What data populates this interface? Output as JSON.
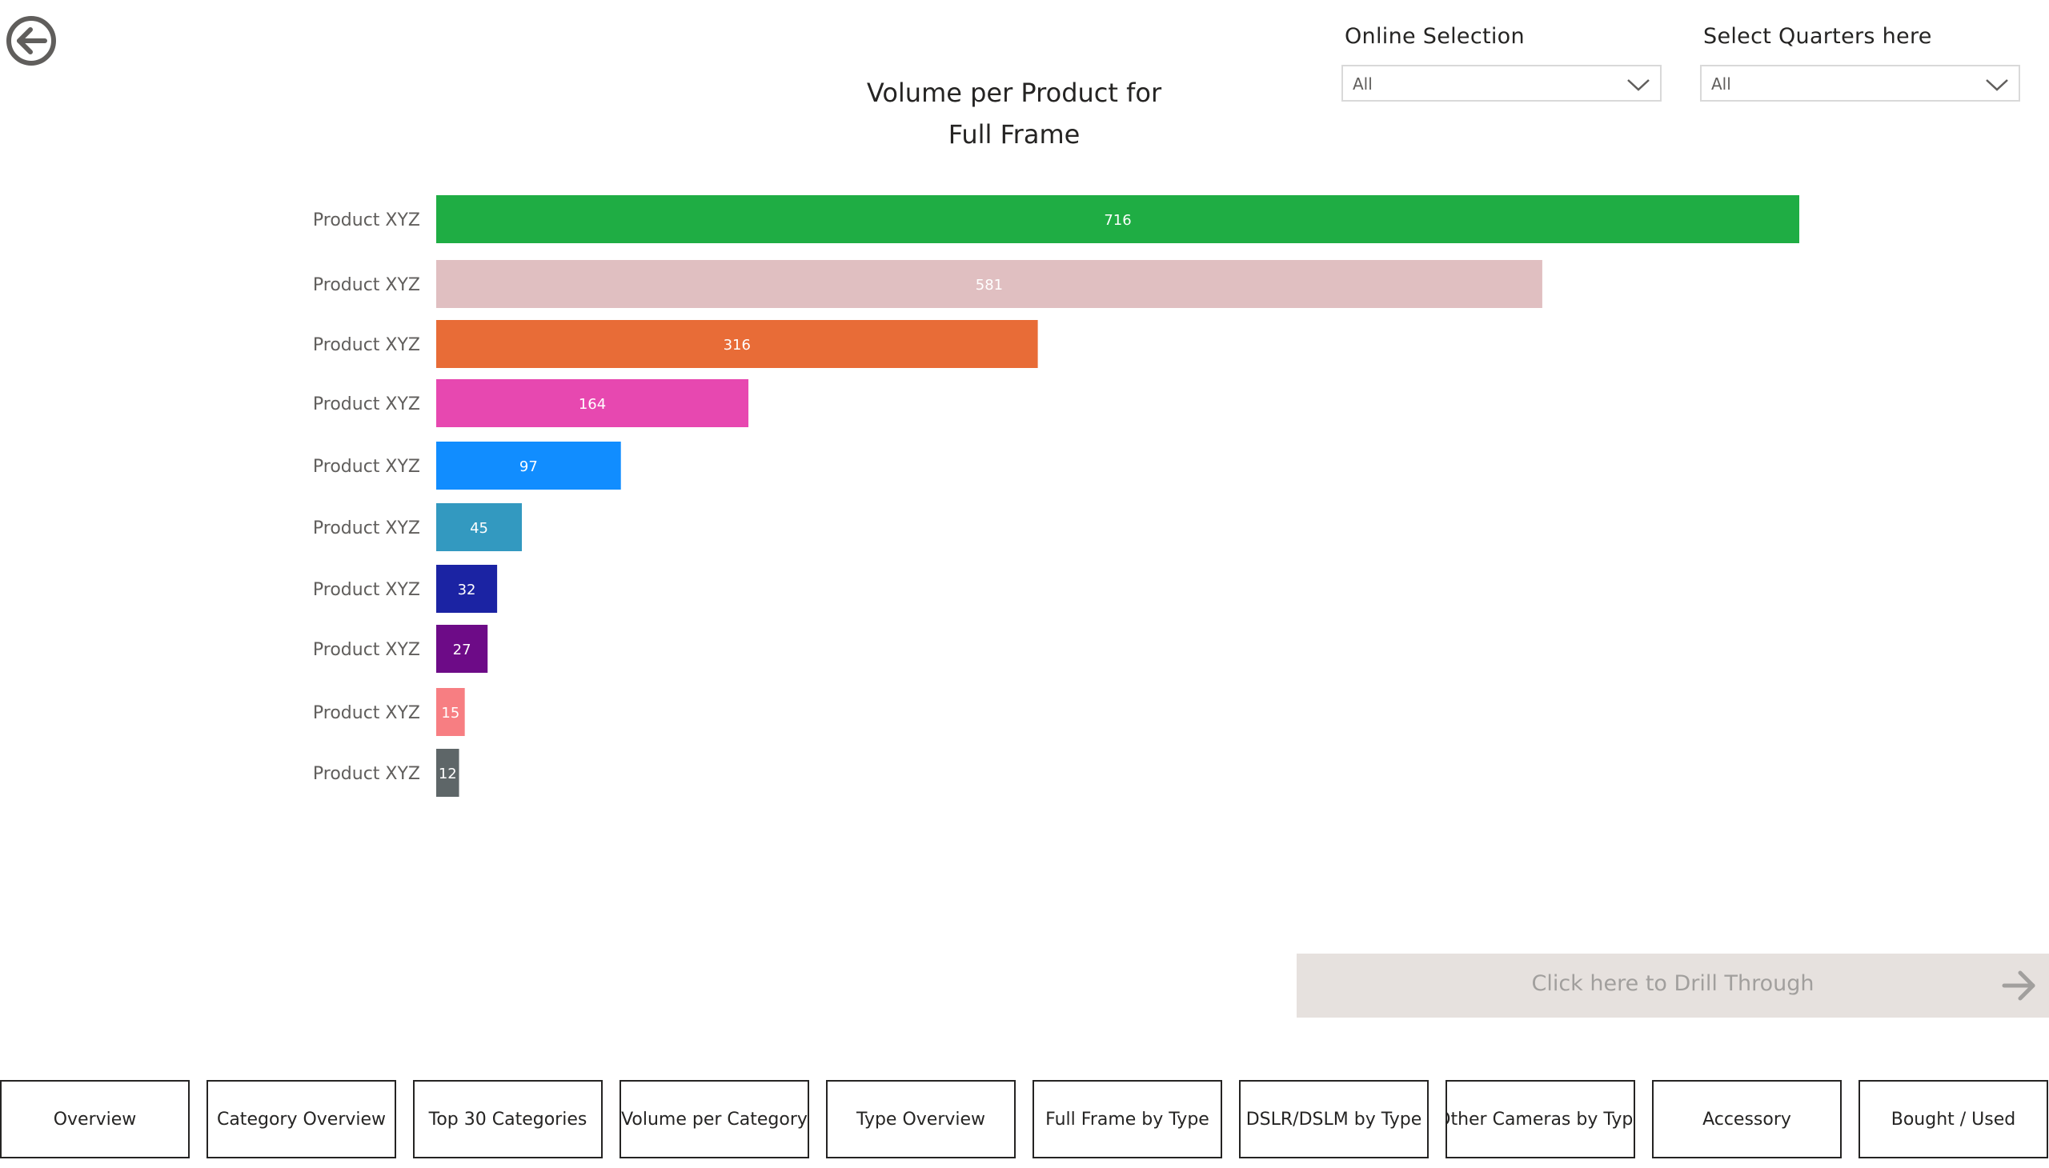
{
  "back_button": {
    "icon": "back-arrow-icon"
  },
  "slicers": [
    {
      "label": "Online Selection",
      "value": "All"
    },
    {
      "label": "Select Quarters here",
      "value": "All"
    }
  ],
  "chart_data": {
    "type": "bar",
    "orientation": "horizontal",
    "title_line1": "Volume per Product for",
    "title_line2": "Full Frame",
    "categories": [
      "Product XYZ",
      "Product XYZ",
      "Product XYZ",
      "Product XYZ",
      "Product XYZ",
      "Product XYZ",
      "Product XYZ",
      "Product XYZ",
      "Product XYZ",
      "Product XYZ"
    ],
    "values": [
      716,
      581,
      316,
      164,
      97,
      45,
      32,
      27,
      15,
      12
    ],
    "colors": [
      "#1fad44",
      "#e0bfc1",
      "#e86c37",
      "#e748b0",
      "#118dff",
      "#3399c0",
      "#1b23a3",
      "#6d0b87",
      "#f77e82",
      "#5e6668"
    ],
    "data_labels": true,
    "grid": false,
    "legend": "none"
  },
  "drill_through": {
    "label": "Click here to Drill Through",
    "icon": "arrow-right-icon"
  },
  "nav": [
    {
      "label": "Overview"
    },
    {
      "label": "Category Overview"
    },
    {
      "label": "Top 30 Categories"
    },
    {
      "label": "Volume per Category"
    },
    {
      "label": "Type Overview"
    },
    {
      "label": "Full Frame by Type"
    },
    {
      "label": "DSLR/DSLM by Type"
    },
    {
      "label": "Other Cameras by Type"
    },
    {
      "label": "Accessory"
    },
    {
      "label": "Bought / Used"
    }
  ]
}
